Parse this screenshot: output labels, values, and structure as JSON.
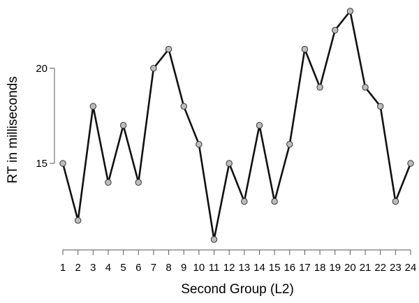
{
  "chart_data": {
    "type": "line",
    "title": "",
    "xlabel": "Second Group (L2)",
    "ylabel": "RT in milliseconds",
    "x": [
      1,
      2,
      3,
      4,
      5,
      6,
      7,
      8,
      9,
      10,
      11,
      12,
      13,
      14,
      15,
      16,
      17,
      18,
      19,
      20,
      21,
      22,
      23,
      24
    ],
    "series": [
      {
        "values": [
          15,
          12,
          18,
          14,
          17,
          14,
          20,
          21,
          18,
          16,
          11,
          15,
          13,
          17,
          13,
          16,
          21,
          19,
          22,
          23,
          19,
          18,
          13,
          15
        ]
      }
    ],
    "x_ticks": [
      "1",
      "2",
      "3",
      "4",
      "5",
      "6",
      "7",
      "8",
      "9",
      "10",
      "11",
      "12",
      "13",
      "14",
      "15",
      "16",
      "17",
      "18",
      "19",
      "20",
      "21",
      "22",
      "23",
      "24"
    ],
    "y_ticks": [
      "15",
      "20"
    ],
    "ylim": [
      11,
      23
    ],
    "grid": false,
    "marker": "circle",
    "line_color": "#111111",
    "marker_fill": "#bdbdbd",
    "marker_edge": "#333333"
  }
}
